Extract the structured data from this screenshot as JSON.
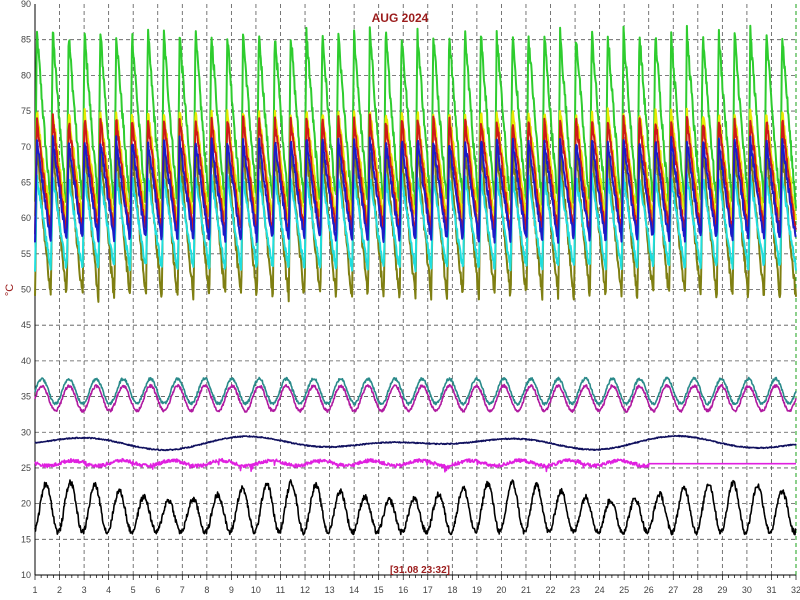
{
  "chart_data": {
    "type": "line",
    "title": "AUG 2024",
    "ylabel": "°C",
    "annotation": "[31.08 23:32]",
    "xlim": [
      1,
      32
    ],
    "ylim": [
      10,
      90
    ],
    "x_ticks": [
      1,
      2,
      3,
      4,
      5,
      6,
      7,
      8,
      9,
      10,
      11,
      12,
      13,
      14,
      15,
      16,
      17,
      18,
      19,
      20,
      21,
      22,
      23,
      24,
      25,
      26,
      27,
      28,
      29,
      30,
      31,
      32
    ],
    "y_ticks": [
      10,
      15,
      20,
      25,
      30,
      35,
      40,
      45,
      50,
      55,
      60,
      65,
      70,
      75,
      80,
      85,
      90
    ],
    "grid": true,
    "series": [
      {
        "color": "#2ecc2e",
        "min": 62,
        "max": 86,
        "shape": "spike"
      },
      {
        "color": "#e8e800",
        "min": 60,
        "max": 75,
        "shape": "spike"
      },
      {
        "color": "#d01818",
        "min": 58,
        "max": 74,
        "shape": "spike"
      },
      {
        "color": "#7f7f12",
        "min": 49,
        "max": 70,
        "shape": "spike"
      },
      {
        "color": "#1fdede",
        "min": 53,
        "max": 66,
        "shape": "spike"
      },
      {
        "color": "#1c1cc8",
        "min": 57,
        "max": 71,
        "shape": "spike"
      },
      {
        "color": "#b01aa0",
        "min": 33,
        "max": 36.5,
        "shape": "wave"
      },
      {
        "color": "#2a8a8a",
        "min": 34,
        "max": 37.5,
        "shape": "wave"
      },
      {
        "color": "#10105e",
        "min": 27.5,
        "max": 29.5,
        "shape": "slow"
      },
      {
        "color": "#e020e0",
        "min": 25,
        "max": 26.5,
        "shape": "flat"
      },
      {
        "color": "#000000",
        "min": 16,
        "max": 23,
        "shape": "daily"
      }
    ]
  }
}
